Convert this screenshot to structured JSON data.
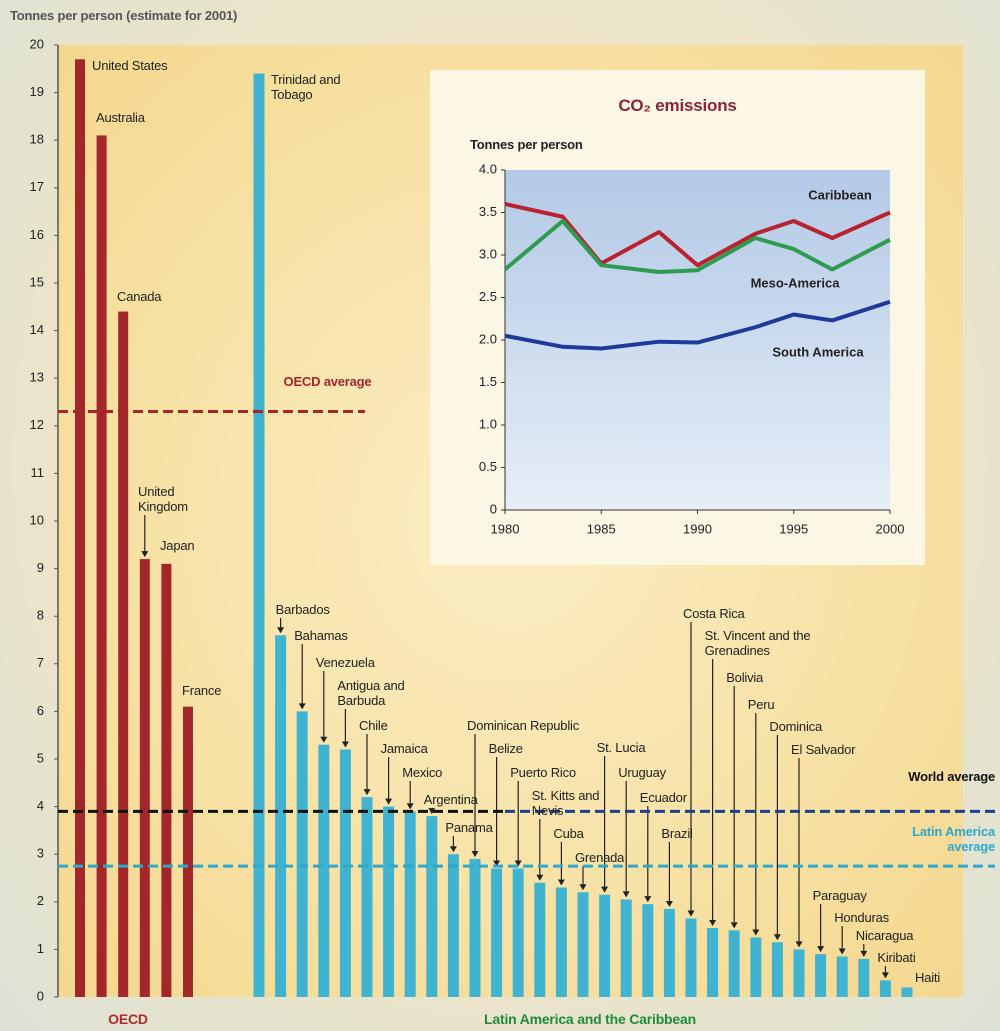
{
  "chart_data": [
    {
      "type": "bar",
      "ylabel": "Tonnes per person (estimate for 2001)",
      "ylim": [
        0,
        20
      ],
      "yticks": [
        0,
        1,
        2,
        3,
        4,
        5,
        6,
        7,
        8,
        9,
        10,
        11,
        12,
        13,
        14,
        15,
        16,
        17,
        18,
        19,
        20
      ],
      "series": [
        {
          "name": "OECD",
          "color": "#a3262a",
          "categories": [
            "United States",
            "Australia",
            "Canada",
            "United Kingdom",
            "Japan",
            "France"
          ],
          "values": [
            19.7,
            18.1,
            14.4,
            9.2,
            9.1,
            6.1
          ]
        },
        {
          "name": "Latin America and the Caribbean",
          "color": "#3fb3d0",
          "categories": [
            "Trinidad and Tobago",
            "Barbados",
            "Bahamas",
            "Venezuela",
            "Antigua and Barbuda",
            "Chile",
            "Jamaica",
            "Mexico",
            "Argentina",
            "Panama",
            "Dominican Republic",
            "Belize",
            "Puerto Rico",
            "St. Kitts and Nevis",
            "Cuba",
            "Grenada",
            "St. Lucia",
            "Uruguay",
            "Ecuador",
            "Brazil",
            "Costa Rica",
            "St. Vincent and the Grenadines",
            "Bolivia",
            "Peru",
            "Dominica",
            "El Salvador",
            "Paraguay",
            "Honduras",
            "Nicaragua",
            "Kiribati",
            "Haiti"
          ],
          "values": [
            19.4,
            7.6,
            6.0,
            5.3,
            5.2,
            4.2,
            4.0,
            3.9,
            3.8,
            3.0,
            2.9,
            2.7,
            2.7,
            2.4,
            2.3,
            2.2,
            2.15,
            2.05,
            1.95,
            1.85,
            1.65,
            1.45,
            1.4,
            1.25,
            1.15,
            1.0,
            0.9,
            0.85,
            0.8,
            0.35,
            0.2
          ]
        }
      ],
      "reference_lines": [
        {
          "name": "OECD average",
          "value": 12.3,
          "color": "#a3262a"
        },
        {
          "name": "World average",
          "value": 3.9,
          "color": "#1c3f8f"
        },
        {
          "name": "Latin America average",
          "value": 2.75,
          "color": "#2fa8cc"
        }
      ]
    },
    {
      "type": "line",
      "title": "CO₂ emissions",
      "ylabel": "Tonnes per person",
      "x": [
        1980,
        1983,
        1985,
        1988,
        1990,
        1993,
        1995,
        1997,
        2000
      ],
      "xlim": [
        1980,
        2000
      ],
      "xticks": [
        1980,
        1985,
        1990,
        1995,
        2000
      ],
      "ylim": [
        0,
        4
      ],
      "yticks": [
        0,
        {
          "value": 0.5,
          "label": "0.5"
        },
        {
          "value": 1,
          "label": "1.0"
        },
        {
          "value": 1.5,
          "label": "1.5"
        },
        {
          "value": 2,
          "label": "2.0"
        },
        {
          "value": 2.5,
          "label": "2.5"
        },
        {
          "value": 3,
          "label": "3.0"
        },
        {
          "value": 3.5,
          "label": "3.5"
        },
        {
          "value": 4,
          "label": "4.0"
        }
      ],
      "series": [
        {
          "name": "Caribbean",
          "color": "#b8232f",
          "values": [
            3.6,
            3.45,
            2.9,
            3.27,
            2.88,
            3.25,
            3.4,
            3.2,
            3.5
          ]
        },
        {
          "name": "Meso-America",
          "color": "#2e9b50",
          "values": [
            2.83,
            3.4,
            2.88,
            2.8,
            2.82,
            3.2,
            3.07,
            2.83,
            3.18
          ]
        },
        {
          "name": "South America",
          "color": "#1f3a9a",
          "values": [
            2.05,
            1.92,
            1.9,
            1.98,
            1.97,
            2.15,
            2.3,
            2.23,
            2.45
          ]
        }
      ]
    }
  ]
}
